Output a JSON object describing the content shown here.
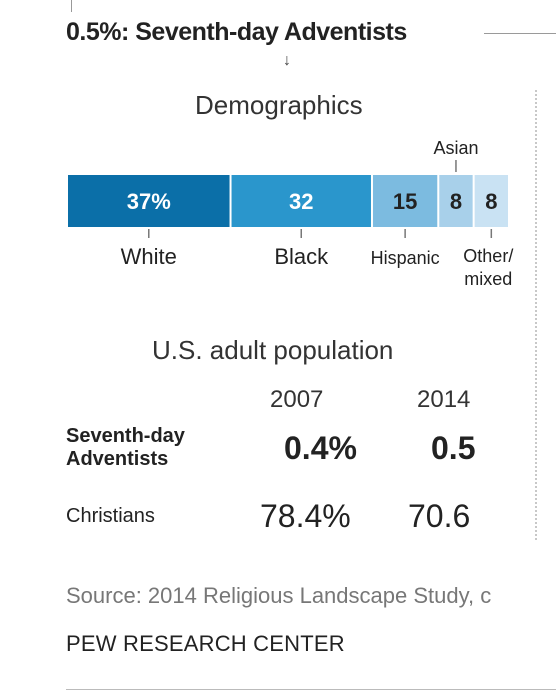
{
  "header": {
    "title": "0.5%: Seventh-day Adventists"
  },
  "demographics": {
    "title": "Demographics"
  },
  "chart_data": {
    "type": "bar",
    "orientation": "horizontal-stacked",
    "title": "Demographics",
    "categories": [
      "White",
      "Black",
      "Hispanic",
      "Asian",
      "Other/mixed"
    ],
    "values": [
      37,
      32,
      15,
      8,
      8
    ],
    "value_labels": [
      "37%",
      "32",
      "15",
      "8",
      "8"
    ],
    "unit": "%",
    "colors": [
      "#0b6fa8",
      "#2a96cc",
      "#7cbbe0",
      "#a8d0ea",
      "#c9e2f3"
    ],
    "label_colors": [
      "#ffffff",
      "#ffffff",
      "#222222",
      "#222222",
      "#222222"
    ]
  },
  "population": {
    "title": "U.S. adult population",
    "years": [
      "2007",
      "2014"
    ],
    "rows": [
      {
        "label_line1": "Seventh-day",
        "label_line2": "Adventists",
        "v2007": "0.4%",
        "v2014": "0.5"
      },
      {
        "label_line1": "Christians",
        "label_line2": "",
        "v2007": "78.4%",
        "v2014": "70.6"
      }
    ]
  },
  "source": "Source: 2014 Religious Landscape Study, c",
  "org": "PEW RESEARCH CENTER"
}
